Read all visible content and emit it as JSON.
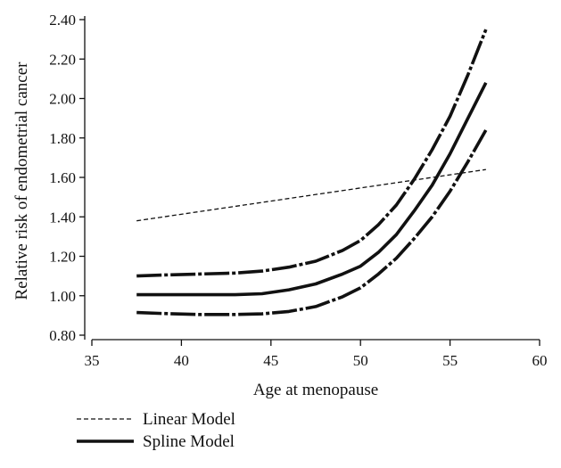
{
  "chart_data": {
    "type": "line",
    "title": "",
    "xlabel": "Age at menopause",
    "ylabel": "Relative risk of endometrial cancer",
    "xlim": [
      35,
      60
    ],
    "ylim": [
      0.8,
      2.4
    ],
    "x_ticks": [
      35,
      40,
      45,
      50,
      55,
      60
    ],
    "x_tick_labels": [
      "35",
      "40",
      "45",
      "50",
      "55",
      "60"
    ],
    "y_ticks": [
      0.8,
      1.0,
      1.2,
      1.4,
      1.6,
      1.8,
      2.0,
      2.2,
      2.4
    ],
    "y_tick_labels": [
      "0.80",
      "1.00",
      "1.20",
      "1.40",
      "1.60",
      "1.80",
      "2.00",
      "2.20",
      "2.40"
    ],
    "grid": false,
    "legend_position": "bottom-left",
    "series": [
      {
        "name": "Linear Model",
        "style": "dashed",
        "color": "#111111",
        "x": [
          37.5,
          57
        ],
        "y": [
          1.38,
          1.64
        ]
      },
      {
        "name": "Spline Model",
        "style": "solid",
        "color": "#111111",
        "x": [
          37.5,
          39,
          41,
          43,
          44.5,
          46,
          47.5,
          49,
          50,
          51,
          52,
          53,
          54,
          55,
          56,
          57
        ],
        "y": [
          1.005,
          1.005,
          1.005,
          1.005,
          1.01,
          1.03,
          1.06,
          1.11,
          1.15,
          1.22,
          1.31,
          1.43,
          1.56,
          1.72,
          1.9,
          2.08
        ]
      },
      {
        "name": "",
        "style": "dash-dot-thick",
        "color": "#111111",
        "x": [
          37.5,
          39,
          41,
          43,
          44.5,
          46,
          47.5,
          49,
          50,
          51,
          52,
          53,
          54,
          55,
          56,
          57
        ],
        "y": [
          1.1,
          1.105,
          1.11,
          1.115,
          1.125,
          1.145,
          1.175,
          1.23,
          1.28,
          1.36,
          1.46,
          1.59,
          1.74,
          1.91,
          2.12,
          2.35
        ]
      },
      {
        "name": "",
        "style": "dash-dot-thick",
        "color": "#111111",
        "x": [
          37.5,
          39,
          41,
          43,
          44.5,
          46,
          47.5,
          49,
          50,
          51,
          52,
          53,
          54,
          55,
          56,
          57
        ],
        "y": [
          0.915,
          0.91,
          0.905,
          0.905,
          0.908,
          0.92,
          0.945,
          0.995,
          1.04,
          1.11,
          1.19,
          1.29,
          1.4,
          1.53,
          1.68,
          1.84
        ]
      }
    ]
  }
}
